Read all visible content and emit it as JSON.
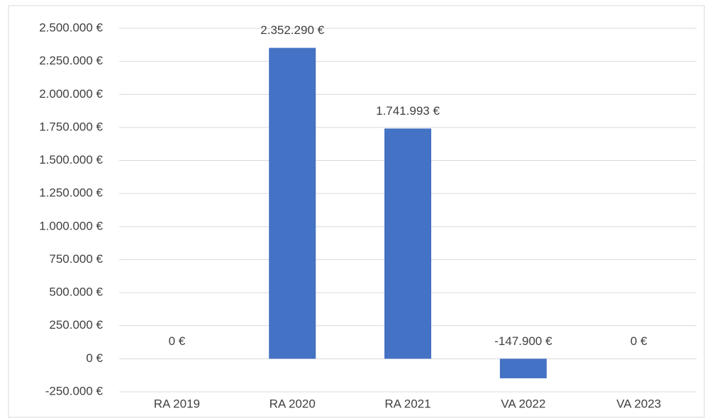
{
  "chart_data": {
    "type": "bar",
    "categories": [
      "RA 2019",
      "RA 2020",
      "RA 2021",
      "VA 2022",
      "VA 2023"
    ],
    "values": [
      0,
      2352290,
      1741993,
      -147900,
      0
    ],
    "value_labels": [
      "0 €",
      "2.352.290 €",
      "1.741.993 €",
      "-147.900 €",
      "0 €"
    ],
    "color": "#4472c4",
    "ylim": [
      -250000,
      2500000
    ],
    "yticks": [
      {
        "value": -250000,
        "label": "-250.000 €"
      },
      {
        "value": 0,
        "label": "0 €"
      },
      {
        "value": 250000,
        "label": "250.000 €"
      },
      {
        "value": 500000,
        "label": "500.000 €"
      },
      {
        "value": 750000,
        "label": "750.000 €"
      },
      {
        "value": 1000000,
        "label": "1.000.000 €"
      },
      {
        "value": 1250000,
        "label": "1.250.000 €"
      },
      {
        "value": 1500000,
        "label": "1.500.000 €"
      },
      {
        "value": 1750000,
        "label": "1.750.000 €"
      },
      {
        "value": 2000000,
        "label": "2.000.000 €"
      },
      {
        "value": 2250000,
        "label": "2.250.000 €"
      },
      {
        "value": 2500000,
        "label": "2.500.000 €"
      }
    ],
    "grid": true
  }
}
